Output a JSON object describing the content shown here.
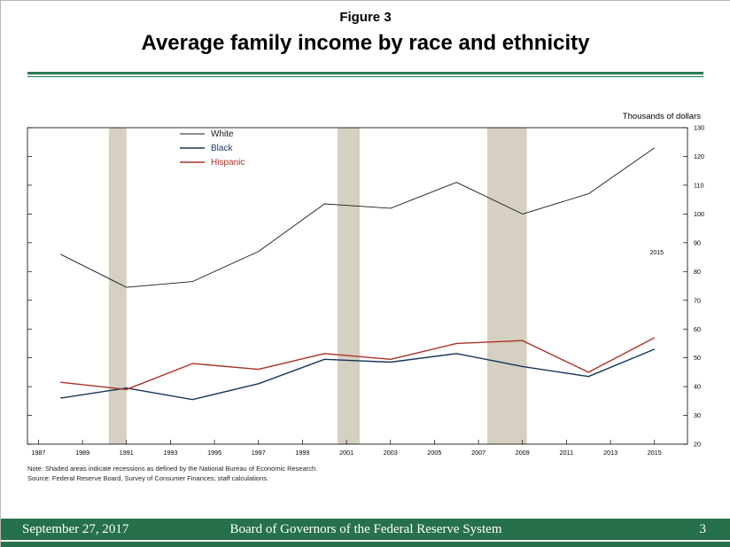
{
  "header": {
    "figure_label": "Figure 3",
    "title": "Average family income by race and ethnicity"
  },
  "notes": {
    "note": "Note: Shaded areas indicate recessions as defined by the National Bureau of Economic Research.",
    "source": "Source: Federal Reserve Board, Survey of Consumer Finances; staff calculations."
  },
  "footer": {
    "date": "September 27, 2017",
    "org": "Board of Governors of the Federal Reserve System",
    "page": "3"
  },
  "colors": {
    "accent_green": "#26714b",
    "rule_green": "#2a7b50",
    "recession_band": "#d5d0c1",
    "white_series": "#1a1a1a",
    "black_series": "#16365c",
    "hispanic_series": "#a93226"
  },
  "chart_data": {
    "type": "line",
    "title": "Average family income by race and ethnicity",
    "ylabel": "Thousands of dollars",
    "x": [
      1988,
      1991,
      1994,
      1997,
      2000,
      2003,
      2006,
      2009,
      2012,
      2015
    ],
    "series": [
      {
        "name": "White",
        "color": "#1a1a1a",
        "width": 0.9,
        "values": [
          86,
          74.5,
          76.5,
          87,
          103.5,
          102,
          111,
          100,
          107,
          123
        ]
      },
      {
        "name": "Black",
        "color": "#16365c",
        "width": 1.4,
        "values": [
          36,
          39.5,
          35.5,
          41,
          49.5,
          48.5,
          51.5,
          47,
          43.5,
          53
        ]
      },
      {
        "name": "Hispanic",
        "color": "#a93226",
        "width": 1.4,
        "values": [
          41.5,
          39,
          48,
          46,
          51.5,
          49.5,
          55,
          56,
          45,
          57
        ]
      }
    ],
    "xlim": [
      1986.5,
      2016.5
    ],
    "xticks": [
      1987,
      1989,
      1991,
      1993,
      1995,
      1997,
      1999,
      2001,
      2003,
      2005,
      2007,
      2009,
      2011,
      2013,
      2015
    ],
    "ylim": [
      20,
      130
    ],
    "ytick_step": 10,
    "grid": false,
    "legend_position": "upper-left-inside",
    "recessions": [
      [
        1990.2,
        1991.0
      ],
      [
        2000.6,
        2001.6
      ],
      [
        2007.4,
        2009.2
      ]
    ],
    "recession_color": "#d5d0c1",
    "annotations": [
      {
        "text": "2015",
        "x": 2015.1,
        "y": 86
      }
    ]
  }
}
